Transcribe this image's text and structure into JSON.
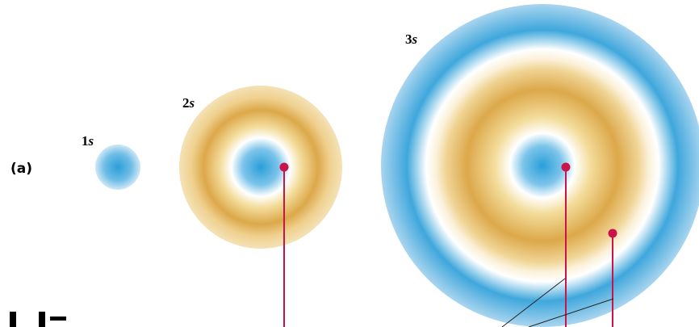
{
  "panel_label": "(a)",
  "orbitals": [
    {
      "number": "1",
      "letter": "s"
    },
    {
      "number": "2",
      "letter": "s"
    },
    {
      "number": "3",
      "letter": "s"
    }
  ]
}
